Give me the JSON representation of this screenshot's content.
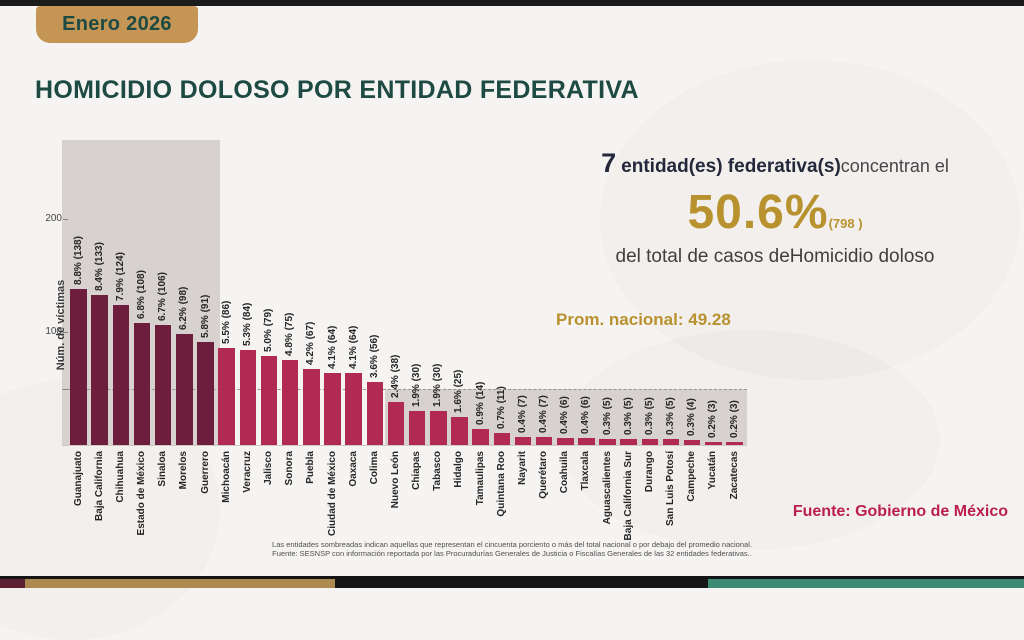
{
  "header": {
    "badge_label": "Enero 2026"
  },
  "title": "HOMICIDIO DOLOSO POR ENTIDAD FEDERATIVA",
  "callout": {
    "count": "7",
    "bold_text": "entidad(es) federativa(s)",
    "regular_text": "concentran el",
    "percent": "50.6%",
    "cases_paren": "(798 )",
    "line2_prefix": "del total de casos de",
    "line2_subject": "Homicidio doloso"
  },
  "prom_nacional_label": "Prom. nacional: 49.28",
  "source_right": "Fuente: Gobierno de México",
  "footnote_line1": "Las entidades sombreadas indican aquellas que representan el cincuenta porciento o más del total nacional o por debajo del promedio nacional.",
  "footnote_line2": "Fuente: SESNSP con información reportada por las Procuradurías Generales de Justicia o Fiscalías Generales de las 32 entidades federativas..",
  "theme": {
    "gold": "#b8922f",
    "teal_dark": "#1d4a42",
    "crimson": "#bb1f4d",
    "badge_gold": "#c49554"
  },
  "chart_data": {
    "type": "bar",
    "title": "",
    "xlabel": "",
    "ylabel": "Núm. de víctimas",
    "yticks": [
      100,
      200
    ],
    "ylim": [
      0,
      270
    ],
    "grid": false,
    "reference_line_value": 49.28,
    "highlighted_entities_count": 7,
    "categories": [
      "Guanajuato",
      "Baja California",
      "Chihuahua",
      "Estado de México",
      "Sinaloa",
      "Morelos",
      "Guerrero",
      "Michoacán",
      "Veracruz",
      "Jalisco",
      "Sonora",
      "Puebla",
      "Ciudad de México",
      "Oaxaca",
      "Colima",
      "Nuevo León",
      "Chiapas",
      "Tabasco",
      "Hidalgo",
      "Tamaulipas",
      "Quintana Roo",
      "Nayarit",
      "Querétaro",
      "Coahuila",
      "Tlaxcala",
      "Aguascalientes",
      "Baja California Sur",
      "Durango",
      "San Luis Potosí",
      "Campeche",
      "Yucatán",
      "Zacatecas"
    ],
    "values": [
      138,
      133,
      124,
      108,
      106,
      98,
      91,
      86,
      84,
      79,
      75,
      67,
      64,
      64,
      56,
      38,
      30,
      30,
      25,
      14,
      11,
      7,
      7,
      6,
      6,
      5,
      5,
      5,
      5,
      4,
      3,
      3
    ],
    "percents": [
      8.8,
      8.4,
      7.9,
      6.8,
      6.7,
      6.2,
      5.8,
      5.5,
      5.3,
      5.0,
      4.8,
      4.2,
      4.1,
      4.1,
      3.6,
      2.4,
      1.9,
      1.9,
      1.6,
      0.9,
      0.7,
      0.4,
      0.4,
      0.4,
      0.4,
      0.3,
      0.3,
      0.3,
      0.3,
      0.3,
      0.2,
      0.2
    ],
    "colors": {
      "highlighted_bar": "#6e1e3d",
      "normal_bar": "#b12a54",
      "shade_region": "#d7d2d0",
      "reference_line": "#9a948f"
    }
  }
}
